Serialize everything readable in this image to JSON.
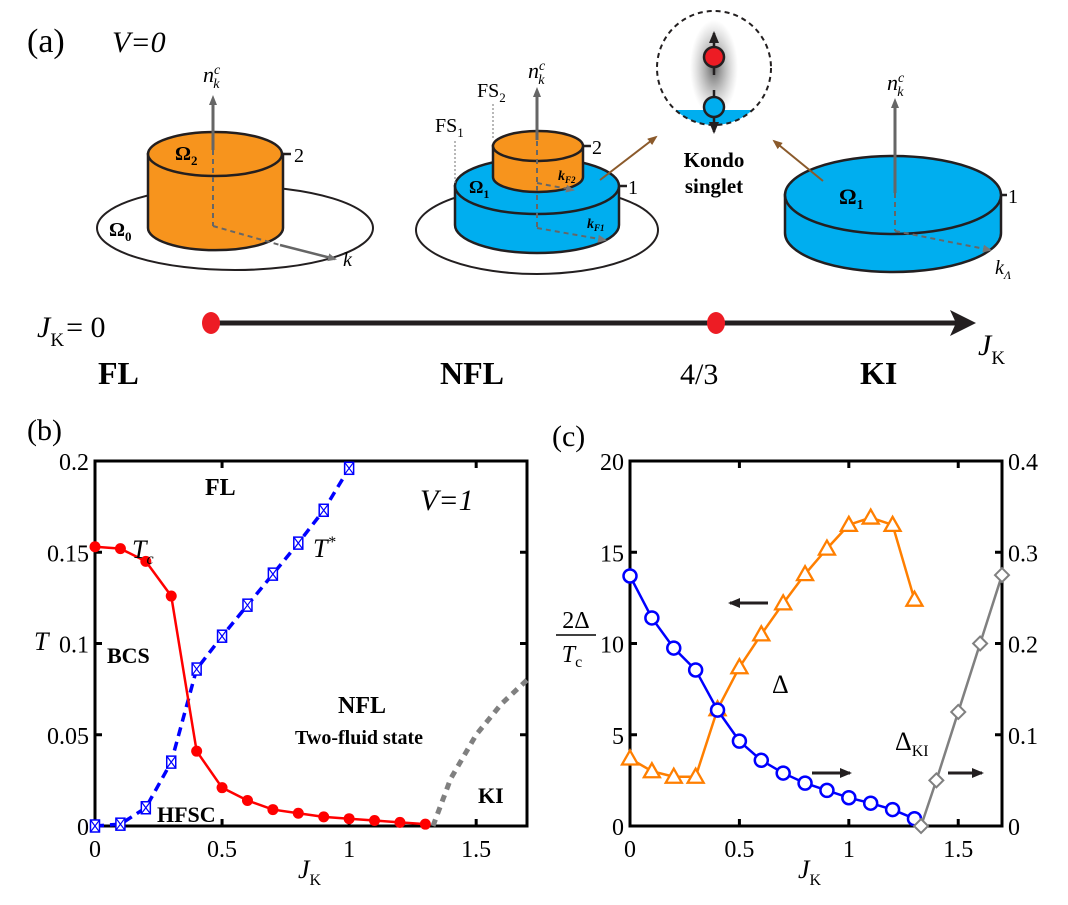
{
  "panel_a": {
    "label": "(a)",
    "condition": "V=0",
    "axis_label_nk": "n",
    "axis_label_nk_sup": "c",
    "axis_label_nk_sub": "k",
    "fl_diagram": {
      "top_region": "Ω",
      "top_sub": "2",
      "base_region": "Ω",
      "base_sub": "0",
      "level": "2",
      "k_label": "k"
    },
    "nfl_diagram": {
      "fs1": "FS",
      "fs1_sub": "1",
      "fs2": "FS",
      "fs2_sub": "2",
      "region": "Ω",
      "region_sub": "1",
      "level2": "2",
      "level1": "1",
      "kf2": "k",
      "kf2_sub": "F2",
      "kf1": "k",
      "kf1_sub": "F1"
    },
    "kondo": {
      "line1": "Kondo",
      "line2": "singlet"
    },
    "ki_diagram": {
      "region": "Ω",
      "region_sub": "1",
      "level": "1",
      "k_label": "k",
      "k_sub": "Λ"
    },
    "axis": {
      "start_label": "J",
      "start_sub": "K",
      "start_eq": "= 0",
      "end_label": "J",
      "end_sub": "K",
      "phases": [
        "FL",
        "NFL",
        "4/3",
        "KI"
      ]
    },
    "colors": {
      "orange": "#F7941D",
      "blue": "#00AEEF",
      "red": "#ED1C24",
      "arrow_brown": "#8B5A2B",
      "gray": "#666666"
    }
  },
  "chart_data": [
    {
      "id": "panel_b",
      "type": "line",
      "label": "(b)",
      "annotation_v": "V=1",
      "xlabel": "J",
      "xlabel_sub": "K",
      "ylabel": "T",
      "xlim": [
        0,
        1.7
      ],
      "ylim": [
        0,
        0.2
      ],
      "xticks": [
        0,
        0.5,
        1,
        1.5
      ],
      "xtick_labels": [
        "0",
        "0.5",
        "1",
        "1.5"
      ],
      "yticks": [
        0,
        0.05,
        0.1,
        0.15,
        0.2
      ],
      "ytick_labels": [
        "0",
        "0.05",
        "0.1",
        "0.15",
        "0.2"
      ],
      "region_labels": [
        "FL",
        "BCS",
        "NFL",
        "Two-fluid state",
        "HFSC",
        "KI"
      ],
      "series": [
        {
          "name": "Tc",
          "label": "T",
          "label_sub": "c",
          "color": "#FF0000",
          "style": "solid",
          "marker": "filled-circle",
          "x": [
            0,
            0.1,
            0.2,
            0.3,
            0.4,
            0.5,
            0.6,
            0.7,
            0.8,
            0.9,
            1.0,
            1.1,
            1.2,
            1.3
          ],
          "y": [
            0.153,
            0.152,
            0.145,
            0.126,
            0.041,
            0.021,
            0.014,
            0.009,
            0.007,
            0.005,
            0.004,
            0.003,
            0.002,
            0.001
          ]
        },
        {
          "name": "T*",
          "label": "T",
          "label_sup": "*",
          "color": "#0000FF",
          "style": "dashed",
          "marker": "crossed-square",
          "x": [
            0,
            0.1,
            0.2,
            0.3,
            0.4,
            0.5,
            0.6,
            0.7,
            0.8,
            0.9,
            1.0
          ],
          "y": [
            0.0,
            0.001,
            0.01,
            0.035,
            0.086,
            0.104,
            0.121,
            0.138,
            0.155,
            0.173,
            0.196
          ]
        },
        {
          "name": "KI boundary",
          "color": "#808080",
          "style": "dotted",
          "marker": "none",
          "x": [
            1.33,
            1.4,
            1.5,
            1.6,
            1.7
          ],
          "y": [
            0.0,
            0.026,
            0.05,
            0.067,
            0.08
          ]
        }
      ]
    },
    {
      "id": "panel_c",
      "type": "line",
      "label": "(c)",
      "xlabel": "J",
      "xlabel_sub": "K",
      "ylabel_left": "2Δ / Tc",
      "ylabel_num": "2Δ",
      "ylabel_den": "T",
      "ylabel_den_sub": "c",
      "xlim": [
        0,
        1.7
      ],
      "ylim_left": [
        0,
        20
      ],
      "ylim_right": [
        0,
        0.4
      ],
      "xticks": [
        0,
        0.5,
        1,
        1.5
      ],
      "xtick_labels": [
        "0",
        "0.5",
        "1",
        "1.5"
      ],
      "yticks_left": [
        0,
        5,
        10,
        15,
        20
      ],
      "ytick_labels_left": [
        "0",
        "5",
        "10",
        "15",
        "20"
      ],
      "yticks_right": [
        0,
        0.1,
        0.2,
        0.3,
        0.4
      ],
      "ytick_labels_right": [
        "0",
        "0.1",
        "0.2",
        "0.3",
        "0.4"
      ],
      "annotations": [
        "Δ",
        "Δ_KI"
      ],
      "delta_label": "Δ",
      "delta_ki_label": "Δ",
      "delta_ki_sub": "KI",
      "series": [
        {
          "name": "2Δ/Tc",
          "axis": "left",
          "color": "#FF7F00",
          "marker": "open-triangle",
          "x": [
            0,
            0.1,
            0.2,
            0.3,
            0.4,
            0.5,
            0.6,
            0.7,
            0.8,
            0.9,
            1.0,
            1.1,
            1.2,
            1.3
          ],
          "y": [
            3.7,
            3.0,
            2.7,
            2.7,
            6.4,
            8.7,
            10.5,
            12.2,
            13.8,
            15.2,
            16.5,
            16.9,
            16.5,
            12.4
          ]
        },
        {
          "name": "Δ",
          "axis": "right",
          "color": "#0000FF",
          "marker": "open-circle",
          "x": [
            0,
            0.1,
            0.2,
            0.3,
            0.4,
            0.5,
            0.6,
            0.7,
            0.8,
            0.9,
            1.0,
            1.1,
            1.2,
            1.3
          ],
          "y": [
            0.274,
            0.228,
            0.195,
            0.171,
            0.127,
            0.093,
            0.072,
            0.058,
            0.047,
            0.039,
            0.031,
            0.025,
            0.018,
            0.008
          ]
        },
        {
          "name": "Δ_KI",
          "axis": "right",
          "color": "#808080",
          "marker": "open-diamond",
          "x": [
            1.33,
            1.4,
            1.5,
            1.6,
            1.7
          ],
          "y": [
            0.0,
            0.05,
            0.125,
            0.2,
            0.275
          ]
        }
      ]
    }
  ]
}
